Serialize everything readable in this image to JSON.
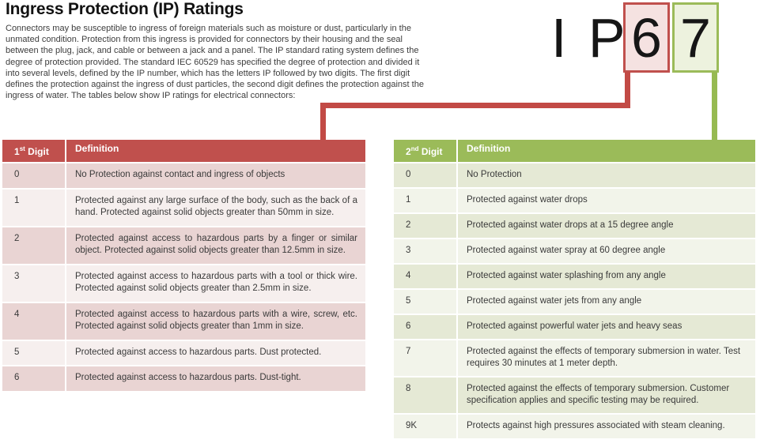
{
  "page": {
    "title": "Ingress Protection (IP) Ratings",
    "intro": "Connectors may be susceptible to ingress of foreign materials such as moisture or dust, particularly in the unmated condition. Protection from this ingress is provided for connectors by their housing and the seal between the plug, jack, and cable or between a jack and a panel. The IP standard rating system defines the degree of protection provided. The standard IEC 60529 has specified the degree of protection and divided it into several levels, defined by the IP number, which has the letters IP followed by two digits. The first digit defines the protection against the ingress of dust particles, the second digit defines the protection against the ingress of water. The tables below show IP ratings for electrical connectors:"
  },
  "ip_badge": {
    "prefix": "I P",
    "first_digit": "6",
    "second_digit": "7"
  },
  "colors": {
    "accent_red": "#c0504d",
    "accent_green": "#9bbb59",
    "red_box_fill": "#f5e2e1",
    "green_box_fill": "#edf2de",
    "red_band_dark": "#e9d4d3",
    "red_band_light": "#f6efee",
    "green_band_dark": "#e5e9d5",
    "green_band_light": "#f2f4ea"
  },
  "first_digit_table": {
    "header": {
      "digit_num": "1",
      "digit_sup": "st",
      "digit_word": "Digit",
      "definition": "Definition"
    },
    "rows": [
      {
        "digit": "0",
        "definition": "No Protection against contact and ingress of objects"
      },
      {
        "digit": "1",
        "definition": "Protected against any large surface of the body, such as the back of a hand. Protected against solid objects greater than 50mm in size."
      },
      {
        "digit": "2",
        "definition": "Protected against access to hazardous parts by a finger or similar object. Protected against solid objects greater than 12.5mm in size."
      },
      {
        "digit": "3",
        "definition": "Protected against access to hazardous parts with a tool or thick wire. Protected against solid objects greater than 2.5mm in size."
      },
      {
        "digit": "4",
        "definition": "Protected against access to hazardous parts with a wire, screw, etc. Protected against solid objects greater than 1mm in size."
      },
      {
        "digit": "5",
        "definition": "Protected against access to hazardous parts. Dust protected."
      },
      {
        "digit": "6",
        "definition": "Protected against access to hazardous parts. Dust-tight."
      }
    ]
  },
  "second_digit_table": {
    "header": {
      "digit_num": "2",
      "digit_sup": "nd",
      "digit_word": "Digit",
      "definition": "Definition"
    },
    "rows": [
      {
        "digit": "0",
        "definition": "No Protection"
      },
      {
        "digit": "1",
        "definition": "Protected against water drops"
      },
      {
        "digit": "2",
        "definition": "Protected against water drops at a 15 degree angle"
      },
      {
        "digit": "3",
        "definition": "Protected against water spray at 60 degree angle"
      },
      {
        "digit": "4",
        "definition": "Protected against water splashing from any angle"
      },
      {
        "digit": "5",
        "definition": "Protected against water jets from any angle"
      },
      {
        "digit": "6",
        "definition": "Protected against powerful water jets and heavy seas"
      },
      {
        "digit": "7",
        "definition": "Protected against the effects of temporary submersion in water. Test requires 30 minutes at 1 meter depth."
      },
      {
        "digit": "8",
        "definition": "Protected against the effects of temporary submersion. Customer specification applies and specific testing may be required."
      },
      {
        "digit": "9K",
        "definition": "Protects against high pressures associated with steam cleaning."
      }
    ]
  }
}
